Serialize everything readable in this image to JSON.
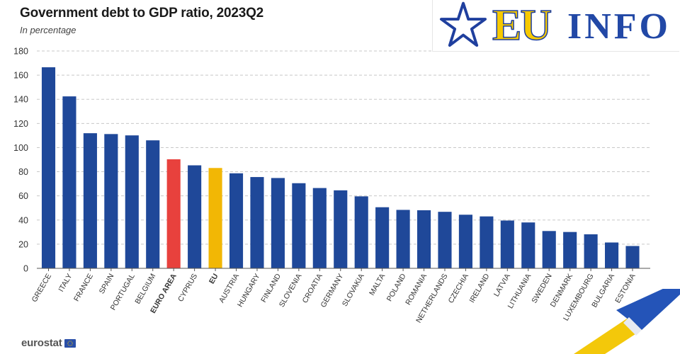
{
  "chart_data": {
    "type": "bar",
    "title": "Government debt to GDP ratio, 2023Q2",
    "subtitle": "In percentage",
    "categories": [
      "GREECE",
      "ITALY",
      "FRANCE",
      "SPAIN",
      "PORTUGAL",
      "BELGIUM",
      "EURO AREA",
      "CYPRUS",
      "EU",
      "AUSTRIA",
      "HUNGARY",
      "FINLAND",
      "SLOVENIA",
      "CROATIA",
      "GERMANY",
      "SLOVAKIA",
      "MALTA",
      "POLAND",
      "ROMANIA",
      "NETHERLANDS",
      "CZECHIA",
      "IRELAND",
      "LATVIA",
      "LITHUANIA",
      "SWEDEN",
      "DENMARK",
      "LUXEMBOURG",
      "BULGARIA",
      "ESTONIA"
    ],
    "values": [
      166.5,
      142.4,
      111.9,
      111.2,
      110.1,
      106.0,
      90.3,
      85.3,
      83.1,
      78.7,
      75.6,
      74.8,
      70.5,
      66.5,
      64.6,
      59.6,
      50.6,
      48.4,
      48.1,
      46.8,
      44.4,
      43.0,
      39.6,
      38.0,
      30.9,
      30.1,
      28.2,
      21.4,
      18.5
    ],
    "ylim": [
      0,
      180
    ],
    "yticks": [
      0,
      20,
      40,
      60,
      80,
      100,
      120,
      140,
      160,
      180
    ],
    "bold_categories": [
      "EURO AREA",
      "EU"
    ],
    "colors": {
      "default": "#1f4899",
      "EURO AREA": "#e8413d",
      "EU": "#f2b705",
      "grid": "#c8c8c8",
      "axis_text": "#333333"
    },
    "grid": true
  },
  "logo": {
    "part1": "EU",
    "part2": "INFO"
  },
  "footer": {
    "brand": "eurostat"
  }
}
